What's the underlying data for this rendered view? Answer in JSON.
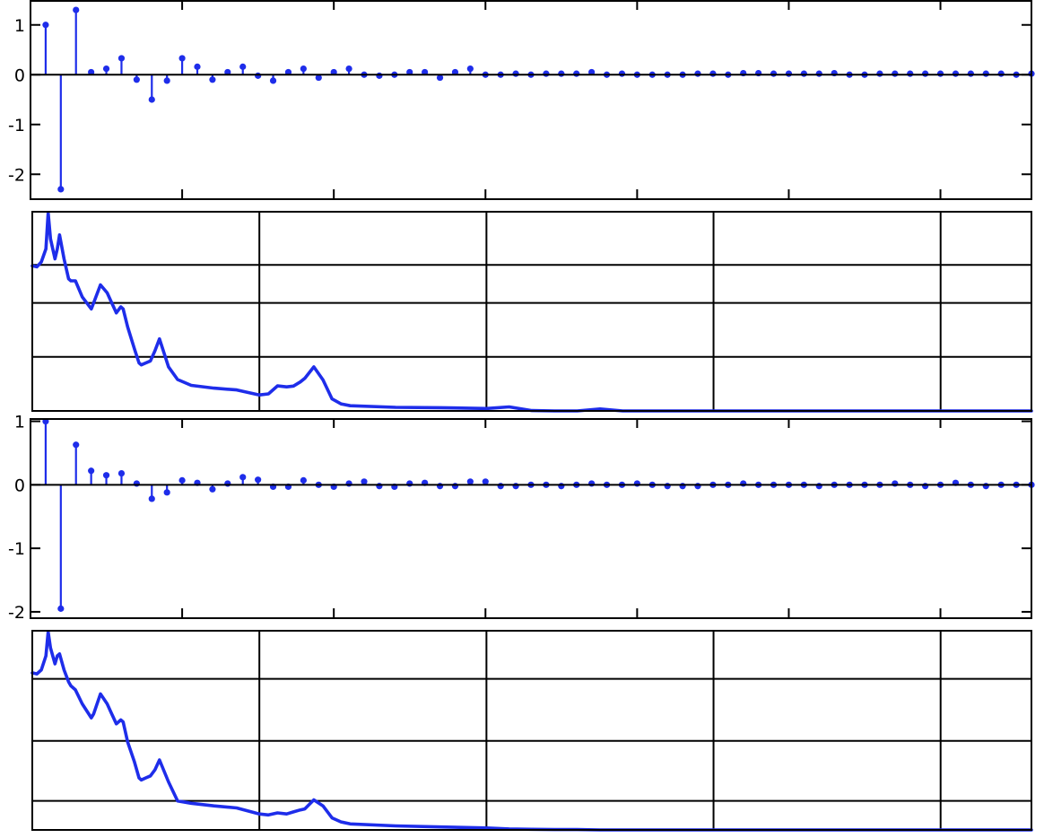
{
  "colors": {
    "data": "#1e2dea",
    "axis": "#000000",
    "background": "#ffffff"
  },
  "chart_data": [
    {
      "type": "stem",
      "n": [
        1,
        2,
        3,
        4,
        5,
        6,
        7,
        8,
        9,
        10,
        11,
        12,
        13,
        14,
        15,
        16,
        17,
        18,
        19,
        20,
        21,
        22,
        23,
        24,
        25,
        26,
        27,
        28,
        29,
        30,
        31,
        32,
        33,
        34,
        35,
        36,
        37,
        38,
        39,
        40,
        41,
        42,
        43,
        44,
        45,
        46,
        47,
        48,
        49,
        50,
        51,
        52,
        53,
        54,
        55,
        56,
        57,
        58,
        59,
        60,
        61,
        62,
        63,
        64,
        65,
        66
      ],
      "values": [
        1.0,
        -2.3,
        1.3,
        0.05,
        0.12,
        0.33,
        -0.1,
        -0.5,
        -0.12,
        0.33,
        0.16,
        -0.1,
        0.05,
        0.16,
        -0.02,
        -0.12,
        0.05,
        0.12,
        -0.06,
        0.05,
        0.12,
        0.0,
        -0.02,
        0.0,
        0.05,
        0.05,
        -0.06,
        0.05,
        0.12,
        0.0,
        0.0,
        0.02,
        0.0,
        0.02,
        0.02,
        0.02,
        0.05,
        0.0,
        0.02,
        0.0,
        0.0,
        0.0,
        0.0,
        0.02,
        0.02,
        0.0,
        0.03,
        0.03,
        0.02,
        0.02,
        0.02,
        0.02,
        0.03,
        0.0,
        0.0,
        0.02,
        0.02,
        0.02,
        0.02,
        0.02,
        0.02,
        0.02,
        0.02,
        0.02,
        0.0,
        0.02
      ],
      "ylim": [
        -2.5,
        1.5
      ],
      "yticks": [
        "-2",
        "-1",
        "0",
        "1"
      ],
      "xlim": [
        0,
        66
      ],
      "xticks_at": [
        10,
        20,
        30,
        40,
        50,
        60
      ],
      "grid": false
    },
    {
      "type": "line",
      "x": [
        0,
        2,
        4,
        6,
        7,
        8,
        10,
        11,
        12,
        14,
        16,
        17,
        19,
        22,
        26,
        27,
        30,
        33,
        35,
        37,
        39,
        40,
        42,
        45,
        47,
        48,
        50,
        52,
        54,
        56,
        60,
        64,
        70,
        80,
        90,
        100,
        104,
        108,
        112,
        115,
        118,
        120,
        124,
        128,
        132,
        136,
        140,
        160,
        180,
        200,
        210,
        220,
        230,
        240,
        250,
        260,
        270,
        280,
        290,
        300,
        310,
        320,
        330,
        340,
        350,
        360,
        370,
        380,
        390,
        400,
        420,
        440
      ],
      "values": [
        0.725,
        0.72,
        0.745,
        0.81,
        0.99,
        0.86,
        0.76,
        0.81,
        0.88,
        0.76,
        0.66,
        0.65,
        0.65,
        0.57,
        0.51,
        0.54,
        0.63,
        0.59,
        0.54,
        0.49,
        0.52,
        0.51,
        0.42,
        0.31,
        0.24,
        0.23,
        0.24,
        0.25,
        0.3,
        0.36,
        0.22,
        0.157,
        0.128,
        0.114,
        0.105,
        0.08,
        0.085,
        0.125,
        0.12,
        0.124,
        0.145,
        0.163,
        0.22,
        0.155,
        0.06,
        0.035,
        0.026,
        0.018,
        0.016,
        0.012,
        0.02,
        0.002,
        0.0,
        0.0,
        0.01,
        0.0,
        0.0,
        0.0,
        0.0,
        0.0,
        0.0,
        0.0,
        0.0,
        0.0,
        0.0,
        0.0,
        0.0,
        0.0,
        0.0,
        0.0,
        0.0,
        0.0
      ],
      "xlim": [
        0,
        440
      ],
      "ylim": [
        0,
        1
      ],
      "xgrid_at": [
        100,
        200,
        300,
        400
      ],
      "ygrid_at": [
        0.27,
        0.54,
        0.73
      ],
      "grid": true
    },
    {
      "type": "stem",
      "n": [
        1,
        2,
        3,
        4,
        5,
        6,
        7,
        8,
        9,
        10,
        11,
        12,
        13,
        14,
        15,
        16,
        17,
        18,
        19,
        20,
        21,
        22,
        23,
        24,
        25,
        26,
        27,
        28,
        29,
        30,
        31,
        32,
        33,
        34,
        35,
        36,
        37,
        38,
        39,
        40,
        41,
        42,
        43,
        44,
        45,
        46,
        47,
        48,
        49,
        50,
        51,
        52,
        53,
        54,
        55,
        56,
        57,
        58,
        59,
        60,
        61,
        62,
        63,
        64,
        65,
        66
      ],
      "values": [
        1.0,
        -1.95,
        0.63,
        0.22,
        0.15,
        0.18,
        0.02,
        -0.22,
        -0.12,
        0.07,
        0.03,
        -0.07,
        0.02,
        0.12,
        0.08,
        -0.03,
        -0.03,
        0.07,
        0.0,
        -0.03,
        0.02,
        0.05,
        -0.02,
        -0.03,
        0.02,
        0.03,
        -0.02,
        -0.02,
        0.05,
        0.05,
        -0.02,
        -0.02,
        0.0,
        0.0,
        -0.02,
        0.0,
        0.02,
        0.0,
        0.0,
        0.02,
        0.0,
        -0.02,
        -0.02,
        -0.02,
        0.0,
        0.0,
        0.02,
        0.0,
        0.0,
        0.0,
        0.0,
        -0.02,
        0.0,
        0.0,
        0.0,
        0.0,
        0.02,
        0.0,
        -0.02,
        0.0,
        0.03,
        0.0,
        -0.02,
        0.0,
        0.0,
        0.0
      ],
      "ylim": [
        -2.1,
        1.05
      ],
      "yticks": [
        "-2",
        "-1",
        "0",
        "1"
      ],
      "xlim": [
        0,
        66
      ],
      "xticks_at": [
        10,
        20,
        30,
        40,
        50,
        60
      ],
      "grid": false
    },
    {
      "type": "line",
      "x": [
        0,
        2,
        4,
        6,
        7,
        8,
        10,
        11,
        12,
        14,
        16,
        17,
        19,
        22,
        26,
        27,
        30,
        33,
        35,
        37,
        39,
        40,
        42,
        45,
        47,
        48,
        50,
        52,
        54,
        56,
        60,
        64,
        70,
        80,
        90,
        100,
        104,
        108,
        112,
        115,
        118,
        120,
        124,
        128,
        132,
        136,
        140,
        160,
        180,
        200,
        210,
        220,
        230,
        240,
        250,
        260,
        270,
        280,
        290,
        300,
        310,
        320,
        330,
        340,
        350,
        360,
        370,
        380,
        390,
        400,
        420,
        440
      ],
      "values": [
        0.785,
        0.78,
        0.8,
        0.87,
        0.99,
        0.91,
        0.83,
        0.87,
        0.88,
        0.8,
        0.74,
        0.72,
        0.7,
        0.63,
        0.56,
        0.58,
        0.68,
        0.63,
        0.58,
        0.53,
        0.55,
        0.54,
        0.44,
        0.34,
        0.26,
        0.25,
        0.26,
        0.27,
        0.3,
        0.35,
        0.24,
        0.145,
        0.133,
        0.12,
        0.11,
        0.08,
        0.075,
        0.085,
        0.08,
        0.09,
        0.1,
        0.105,
        0.15,
        0.12,
        0.06,
        0.04,
        0.03,
        0.02,
        0.015,
        0.01,
        0.005,
        0.003,
        0.002,
        0.002,
        0.0,
        0.0,
        0.0,
        0.0,
        0.0,
        0.0,
        0.0,
        0.0,
        0.0,
        0.0,
        0.0,
        0.0,
        0.0,
        0.0,
        0.0,
        0.0,
        0.0,
        0.0
      ],
      "xlim": [
        0,
        440
      ],
      "ylim": [
        0,
        1
      ],
      "xgrid_at": [
        100,
        200,
        300,
        400
      ],
      "ygrid_at": [
        0.145,
        0.445,
        0.755
      ],
      "grid": true
    }
  ]
}
